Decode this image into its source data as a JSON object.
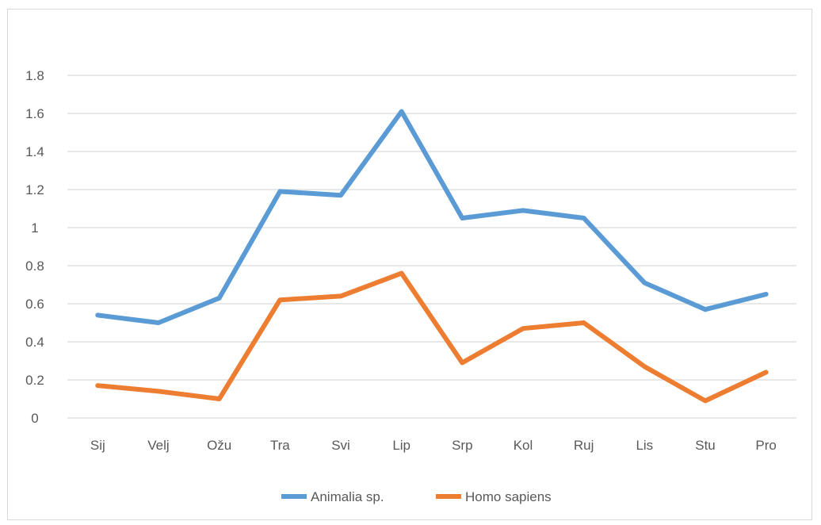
{
  "chart_data": {
    "type": "line",
    "title": "",
    "xlabel": "",
    "ylabel": "",
    "categories": [
      "Sij",
      "Velj",
      "Ožu",
      "Tra",
      "Svi",
      "Lip",
      "Srp",
      "Kol",
      "Ruj",
      "Lis",
      "Stu",
      "Pro"
    ],
    "ylim": [
      0,
      1.8
    ],
    "yticks": [
      "0",
      "0.2",
      "0.4",
      "0.6",
      "0.8",
      "1",
      "1.2",
      "1.4",
      "1.6",
      "1.8"
    ],
    "grid": true,
    "legend_position": "bottom",
    "series": [
      {
        "name": "Animalia sp.",
        "color": "#5b9bd5",
        "values": [
          0.54,
          0.5,
          0.63,
          1.19,
          1.17,
          1.61,
          1.05,
          1.09,
          1.05,
          0.71,
          0.57,
          0.65
        ]
      },
      {
        "name": "Homo sapiens",
        "color": "#ed7d31",
        "values": [
          0.17,
          0.14,
          0.1,
          0.62,
          0.64,
          0.76,
          0.29,
          0.47,
          0.5,
          0.27,
          0.09,
          0.24
        ]
      }
    ]
  }
}
